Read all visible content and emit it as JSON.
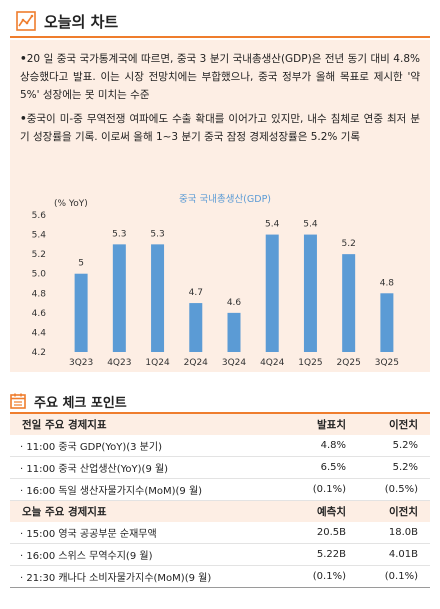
{
  "header": {
    "title": "오늘의 차트",
    "icon": "chart-line-icon"
  },
  "summary": {
    "bullets": [
      "20 일 중국 국가통계국에 따르면, 중국 3 분기 국내총생산(GDP)은 전년 동기 대비 4.8% 상승했다고 발표. 이는 시장 전망치에는 부합했으나, 중국 정부가 올해 목표로 제시한 '약 5%' 성장에는 못 미치는 수준",
      "중국이 미-중 무역전쟁 여파에도 수출 확대를 이어가고 있지만, 내수 침체로 연중 최저 분기 성장률을 기록. 이로써 올해 1~3 분기 중국 잠정 경제성장률은 5.2% 기록"
    ]
  },
  "chart_data": {
    "type": "bar",
    "title": "중국 국내총생산(GDP)",
    "ylabel": "(% YoY)",
    "categories": [
      "3Q23",
      "4Q23",
      "1Q24",
      "2Q24",
      "3Q24",
      "4Q24",
      "1Q25",
      "2Q25",
      "3Q25"
    ],
    "values": [
      5.0,
      5.3,
      5.3,
      4.7,
      4.6,
      5.4,
      5.4,
      5.2,
      4.8
    ],
    "value_labels": [
      "5",
      "5.3",
      "5.3",
      "4.7",
      "4.6",
      "5.4",
      "5.4",
      "5.2",
      "4.8"
    ],
    "ylim": [
      4.2,
      5.6
    ],
    "yticks": [
      "4.2",
      "4.4",
      "4.6",
      "4.8",
      "5.0",
      "5.2",
      "5.4",
      "5.6"
    ],
    "grid": false,
    "bar_color": "#5b9bd5",
    "title_color": "#5b9bd5"
  },
  "checkpoint": {
    "title": "주요 체크 포인트",
    "icon": "calendar-icon",
    "previous": {
      "header": [
        "전일 주요 경제지표",
        "발표치",
        "이전치"
      ],
      "rows": [
        [
          "· 11:00 중국 GDP(YoY)(3 분기)",
          "4.8%",
          "5.2%"
        ],
        [
          "· 11:00 중국 산업생산(YoY)(9 월)",
          "6.5%",
          "5.2%"
        ],
        [
          "· 16:00 독일 생산자물가지수(MoM)(9 월)",
          "(0.1%)",
          "(0.5%)"
        ]
      ]
    },
    "today": {
      "header": [
        "오늘 주요 경제지표",
        "예측치",
        "이전치"
      ],
      "rows": [
        [
          "· 15:00 영국 공공부문 순재무액",
          "20.5B",
          "18.0B"
        ],
        [
          "· 16:00 스위스 무역수지(9 월)",
          "5.22B",
          "4.01B"
        ],
        [
          "· 21:30 캐나다 소비자물가지수(MoM)(9 월)",
          "(0.1%)",
          "(0.1%)"
        ]
      ]
    }
  },
  "colors": {
    "accent": "#ef7d2d",
    "panel": "#fdeee4"
  }
}
